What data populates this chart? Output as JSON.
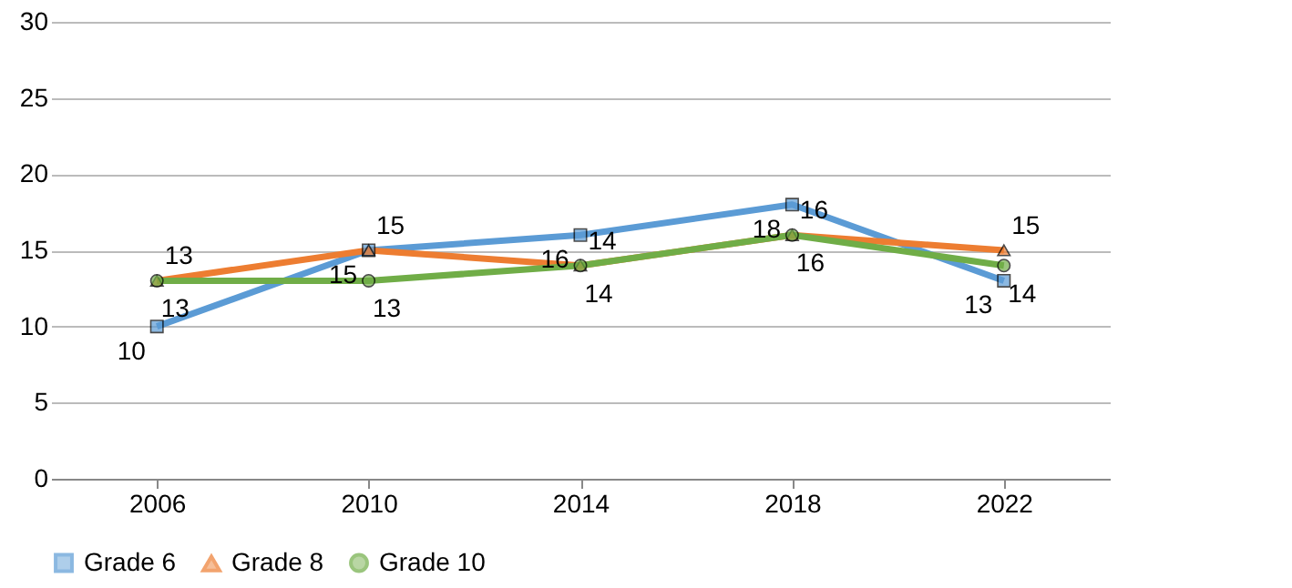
{
  "chart_data": {
    "type": "line",
    "categories": [
      "2006",
      "2010",
      "2014",
      "2018",
      "2022"
    ],
    "series": [
      {
        "name": "Grade 6",
        "color": "#5b9bd5",
        "marker": "square",
        "values": [
          10,
          15,
          16,
          18,
          13
        ]
      },
      {
        "name": "Grade 8",
        "color": "#ed7d31",
        "marker": "triangle",
        "values": [
          13,
          15,
          14,
          16,
          15
        ]
      },
      {
        "name": "Grade 10",
        "color": "#70ad47",
        "marker": "circle",
        "values": [
          13,
          13,
          14,
          16,
          14
        ]
      }
    ],
    "ylim": [
      0,
      30
    ],
    "yticks": [
      0,
      5,
      10,
      15,
      20,
      25,
      30
    ],
    "grid": "y",
    "legend": "bottom",
    "data_labels": true,
    "line_style": "solid"
  }
}
